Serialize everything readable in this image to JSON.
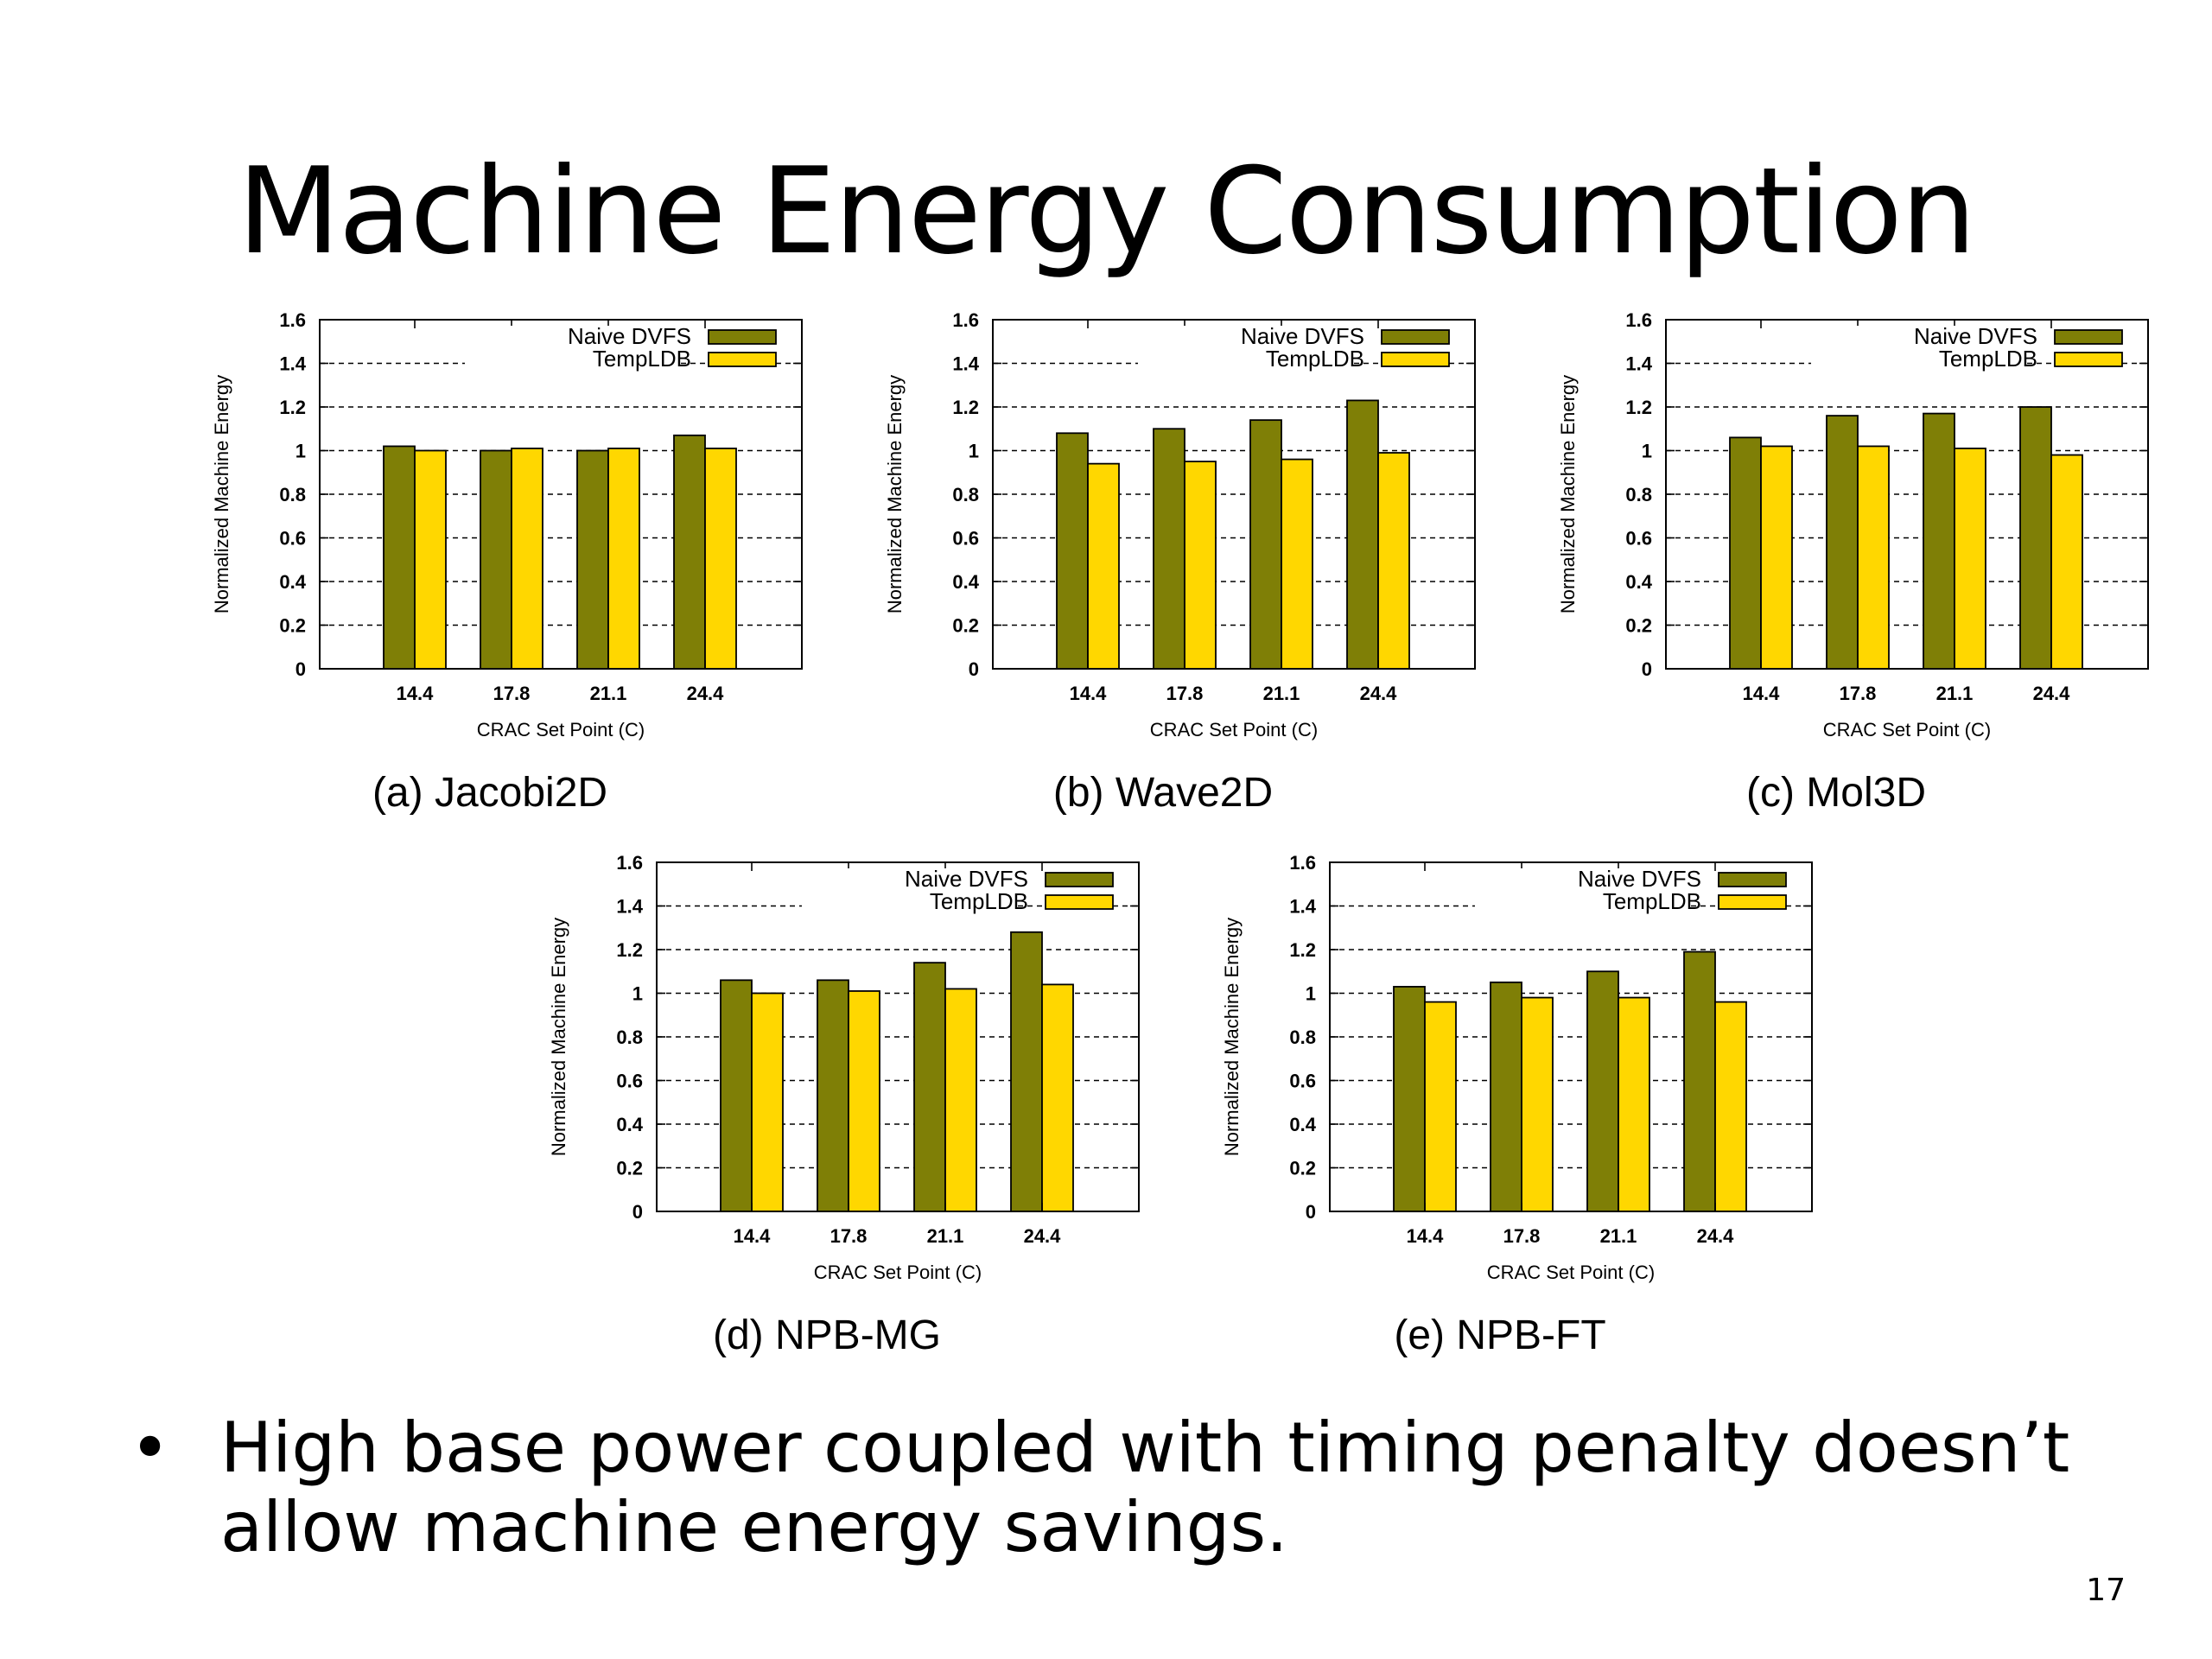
{
  "slide": {
    "title": "Machine Energy Consumption",
    "bullet_symbol": "•",
    "bullet_text": "High base power coupled with timing penalty doesn’t allow machine energy savings.",
    "page_number": "17"
  },
  "colors": {
    "naive_dvfs": "#7f7f06",
    "templdb": "#ffd700",
    "grid": "#000000"
  },
  "chart_data": [
    {
      "type": "bar",
      "caption": "(a) Jacobi2D",
      "categories": [
        "14.4",
        "17.8",
        "21.1",
        "24.4"
      ],
      "series": [
        {
          "name": "Naive DVFS",
          "values": [
            1.02,
            1.0,
            1.0,
            1.07
          ]
        },
        {
          "name": "TempLDB",
          "values": [
            1.0,
            1.01,
            1.01,
            1.01
          ]
        }
      ],
      "xlabel": "CRAC Set Point (C)",
      "ylabel": "Normalized Machine Energy",
      "ylim": [
        0,
        1.6
      ],
      "yticks": [
        "0",
        "0.2",
        "0.4",
        "0.6",
        "0.8",
        "1",
        "1.2",
        "1.4",
        "1.6"
      ],
      "grid": true,
      "legend": "top-right"
    },
    {
      "type": "bar",
      "caption": "(b) Wave2D",
      "categories": [
        "14.4",
        "17.8",
        "21.1",
        "24.4"
      ],
      "series": [
        {
          "name": "Naive DVFS",
          "values": [
            1.08,
            1.1,
            1.14,
            1.23
          ]
        },
        {
          "name": "TempLDB",
          "values": [
            0.94,
            0.95,
            0.96,
            0.99
          ]
        }
      ],
      "xlabel": "CRAC Set Point (C)",
      "ylabel": "Normalized Machine Energy",
      "ylim": [
        0,
        1.6
      ],
      "yticks": [
        "0",
        "0.2",
        "0.4",
        "0.6",
        "0.8",
        "1",
        "1.2",
        "1.4",
        "1.6"
      ],
      "grid": true,
      "legend": "top-right"
    },
    {
      "type": "bar",
      "caption": "(c) Mol3D",
      "categories": [
        "14.4",
        "17.8",
        "21.1",
        "24.4"
      ],
      "series": [
        {
          "name": "Naive DVFS",
          "values": [
            1.06,
            1.16,
            1.17,
            1.2
          ]
        },
        {
          "name": "TempLDB",
          "values": [
            1.02,
            1.02,
            1.01,
            0.98
          ]
        }
      ],
      "xlabel": "CRAC Set Point (C)",
      "ylabel": "Normalized Machine Energy",
      "ylim": [
        0,
        1.6
      ],
      "yticks": [
        "0",
        "0.2",
        "0.4",
        "0.6",
        "0.8",
        "1",
        "1.2",
        "1.4",
        "1.6"
      ],
      "grid": true,
      "legend": "top-right"
    },
    {
      "type": "bar",
      "caption": "(d) NPB-MG",
      "categories": [
        "14.4",
        "17.8",
        "21.1",
        "24.4"
      ],
      "series": [
        {
          "name": "Naive DVFS",
          "values": [
            1.06,
            1.06,
            1.14,
            1.28
          ]
        },
        {
          "name": "TempLDB",
          "values": [
            1.0,
            1.01,
            1.02,
            1.04
          ]
        }
      ],
      "xlabel": "CRAC Set Point (C)",
      "ylabel": "Normalized Machine Energy",
      "ylim": [
        0,
        1.6
      ],
      "yticks": [
        "0",
        "0.2",
        "0.4",
        "0.6",
        "0.8",
        "1",
        "1.2",
        "1.4",
        "1.6"
      ],
      "grid": true,
      "legend": "top-right"
    },
    {
      "type": "bar",
      "caption": "(e) NPB-FT",
      "categories": [
        "14.4",
        "17.8",
        "21.1",
        "24.4"
      ],
      "series": [
        {
          "name": "Naive DVFS",
          "values": [
            1.03,
            1.05,
            1.1,
            1.19
          ]
        },
        {
          "name": "TempLDB",
          "values": [
            0.96,
            0.98,
            0.98,
            0.96
          ]
        }
      ],
      "xlabel": "CRAC Set Point (C)",
      "ylabel": "Normalized Machine Energy",
      "ylim": [
        0,
        1.6
      ],
      "yticks": [
        "0",
        "0.2",
        "0.4",
        "0.6",
        "0.8",
        "1",
        "1.2",
        "1.4",
        "1.6"
      ],
      "grid": true,
      "legend": "top-right"
    }
  ]
}
